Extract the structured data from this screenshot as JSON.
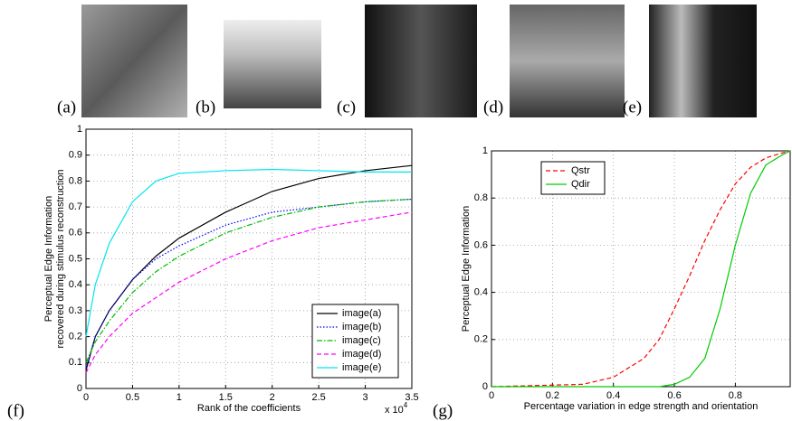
{
  "panels": [
    "(a)",
    "(b)",
    "(c)",
    "(d)",
    "(e)"
  ],
  "chart_data": [
    {
      "type": "line",
      "panel_label": "(f)",
      "x_label": "Rank of the coefficients",
      "x_multiplier": {
        "base": "x 10",
        "exponent": "4"
      },
      "y_label": [
        "Perceptual Edge Information",
        "recovered during stimulus reconstruction"
      ],
      "x": [
        0,
        0.1,
        0.25,
        0.5,
        0.75,
        1,
        1.5,
        2,
        2.5,
        3,
        3.5
      ],
      "series": [
        {
          "name": "image(a)",
          "color": "#000000",
          "style": "solid",
          "values": [
            0.07,
            0.2,
            0.3,
            0.42,
            0.51,
            0.58,
            0.68,
            0.76,
            0.81,
            0.84,
            0.86
          ]
        },
        {
          "name": "image(b)",
          "color": "#0000ff",
          "style": "dotted",
          "values": [
            0.08,
            0.2,
            0.3,
            0.42,
            0.5,
            0.55,
            0.63,
            0.68,
            0.7,
            0.72,
            0.73
          ]
        },
        {
          "name": "image(c)",
          "color": "#00bb00",
          "style": "dashdot",
          "values": [
            0.1,
            0.18,
            0.26,
            0.37,
            0.45,
            0.51,
            0.6,
            0.66,
            0.7,
            0.72,
            0.73
          ]
        },
        {
          "name": "image(d)",
          "color": "#ff00ff",
          "style": "dashed",
          "values": [
            0.06,
            0.13,
            0.2,
            0.29,
            0.35,
            0.41,
            0.5,
            0.57,
            0.62,
            0.65,
            0.68
          ]
        },
        {
          "name": "image(e)",
          "color": "#00e5ee",
          "style": "solid",
          "values": [
            0.2,
            0.4,
            0.56,
            0.72,
            0.8,
            0.83,
            0.84,
            0.845,
            0.84,
            0.835,
            0.835
          ]
        }
      ],
      "xlim": [
        0,
        3.5
      ],
      "xticks": [
        0,
        0.5,
        1,
        1.5,
        2,
        2.5,
        3,
        3.5
      ],
      "ylim": [
        0,
        1
      ],
      "yticks": [
        0,
        0.1,
        0.2,
        0.3,
        0.4,
        0.5,
        0.6,
        0.7,
        0.8,
        0.9,
        1
      ],
      "grid": true,
      "legend": "lower right"
    },
    {
      "type": "line",
      "panel_label": "(g)",
      "x_label": "Percentage variation in edge strength and orientation",
      "y_label": [
        "Perceptual Edge Information"
      ],
      "x": [
        0,
        0.3,
        0.4,
        0.5,
        0.55,
        0.6,
        0.65,
        0.7,
        0.75,
        0.8,
        0.85,
        0.9,
        0.95,
        0.98
      ],
      "series": [
        {
          "name": "Qstr",
          "color": "#ff0000",
          "style": "dashed",
          "values": [
            0,
            0.01,
            0.04,
            0.12,
            0.2,
            0.33,
            0.47,
            0.62,
            0.75,
            0.86,
            0.93,
            0.97,
            0.99,
            1
          ]
        },
        {
          "name": "Qdir",
          "color": "#00cc00",
          "style": "solid",
          "values": [
            0,
            0,
            0,
            0,
            0,
            0.01,
            0.04,
            0.12,
            0.33,
            0.6,
            0.82,
            0.94,
            0.98,
            1
          ]
        }
      ],
      "xlim": [
        0,
        0.98
      ],
      "xticks": [
        0,
        0.2,
        0.4,
        0.6,
        0.8
      ],
      "ylim": [
        0,
        1
      ],
      "yticks": [
        0,
        0.2,
        0.4,
        0.6,
        0.8,
        1
      ],
      "grid": true,
      "legend": "upper left"
    }
  ]
}
